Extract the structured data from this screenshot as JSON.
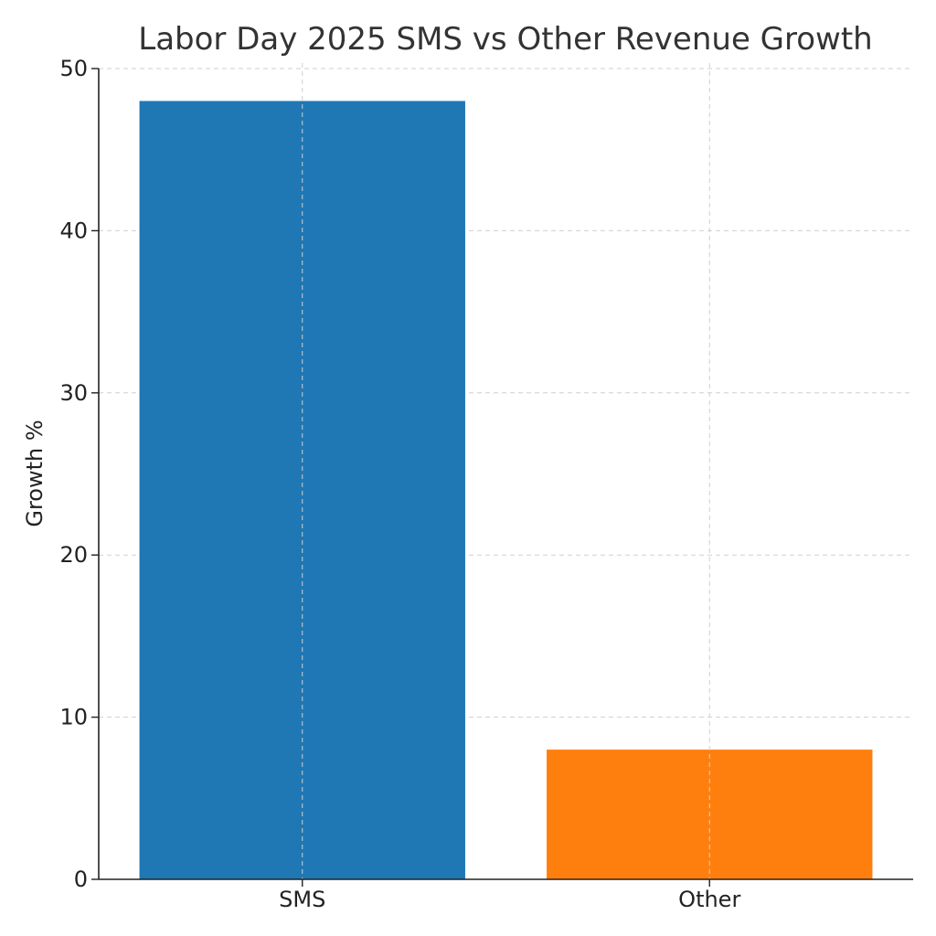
{
  "chart_data": {
    "type": "bar",
    "title": "Labor Day 2025 SMS vs Other Revenue Growth",
    "xlabel": "",
    "ylabel": "Growth %",
    "categories": [
      "SMS",
      "Other"
    ],
    "values": [
      48,
      8
    ],
    "colors": [
      "#1f77b4",
      "#ff7f0e"
    ],
    "ylim": [
      0,
      50
    ],
    "yticks": [
      0,
      10,
      20,
      30,
      40,
      50
    ],
    "grid": true,
    "legend": "none"
  }
}
